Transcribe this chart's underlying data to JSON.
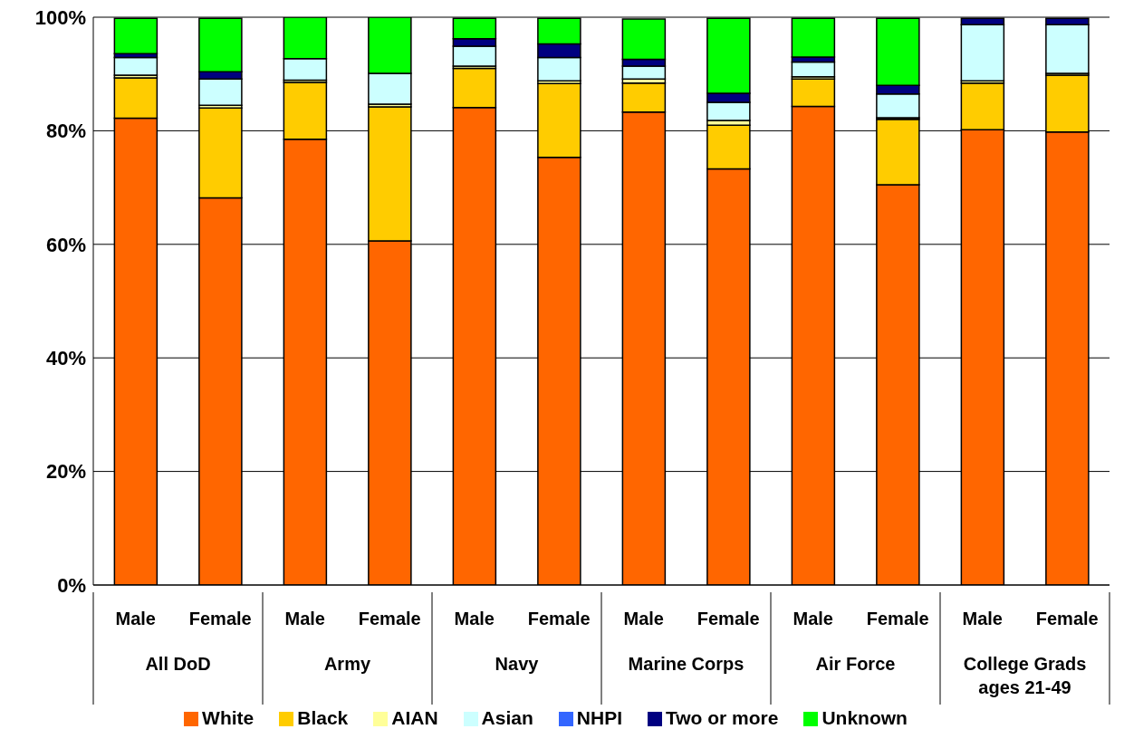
{
  "chart_data": {
    "type": "bar",
    "stacked": true,
    "categories": [
      "Male",
      "Female",
      "Male",
      "Female",
      "Male",
      "Female",
      "Male",
      "Female",
      "Male",
      "Female",
      "Male",
      "Female"
    ],
    "annotations": [
      "All DoD",
      "Army",
      "Navy",
      "Marine Corps",
      "Air Force",
      "College Grads ages 21-49"
    ],
    "series": [
      {
        "name": "White",
        "color": "#ff6600",
        "values": [
          82.2,
          68.2,
          78.5,
          60.6,
          84.1,
          75.3,
          83.3,
          73.3,
          84.3,
          70.5,
          80.2,
          79.8
        ]
      },
      {
        "name": "Black",
        "color": "#ffcc00",
        "values": [
          7.1,
          15.8,
          10.0,
          23.6,
          6.9,
          13.0,
          5.1,
          7.7,
          4.8,
          11.5,
          8.2,
          10.0
        ]
      },
      {
        "name": "AIAN",
        "color": "#ffff99",
        "values": [
          0.5,
          0.5,
          0.4,
          0.5,
          0.4,
          0.5,
          0.7,
          0.8,
          0.4,
          0.3,
          0.4,
          0.3
        ]
      },
      {
        "name": "Asian",
        "color": "#ccffff",
        "values": [
          3.1,
          4.6,
          3.8,
          5.4,
          3.5,
          4.1,
          2.3,
          3.2,
          2.6,
          4.2,
          9.9,
          8.6
        ]
      },
      {
        "name": "NHPI",
        "color": "#3366ff",
        "values": [
          null,
          null,
          null,
          null,
          null,
          null,
          null,
          null,
          null,
          null,
          null,
          null
        ]
      },
      {
        "name": "Two or more",
        "color": "#000080",
        "values": [
          0.7,
          1.3,
          0,
          0,
          1.3,
          2.4,
          1.2,
          1.6,
          0.9,
          1.5,
          1.1,
          1.1
        ]
      },
      {
        "name": "Unknown",
        "color": "#00ff00",
        "values": [
          6.2,
          9.4,
          7.3,
          9.9,
          3.6,
          4.5,
          7.1,
          13.2,
          6.8,
          11.8,
          0,
          0
        ]
      }
    ],
    "ylim": [
      0,
      100
    ],
    "yticks": [
      {
        "value": 0,
        "label": "0%"
      },
      {
        "value": 20,
        "label": "20%"
      },
      {
        "value": 40,
        "label": "40%"
      },
      {
        "value": 60,
        "label": "60%"
      },
      {
        "value": 80,
        "label": "80%"
      },
      {
        "value": 100,
        "label": "100%"
      }
    ],
    "grid": "y",
    "legend": "bottom"
  }
}
